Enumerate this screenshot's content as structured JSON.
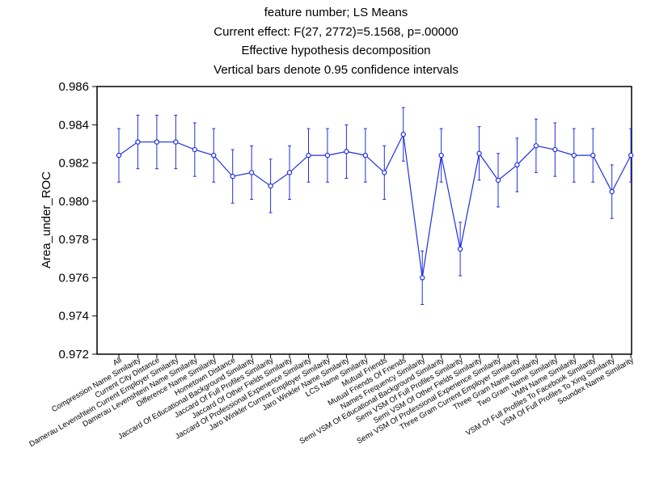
{
  "header": {
    "line1": "feature number; LS Means",
    "line2": "Current effect: F(27, 2772)=5.1568, p=.00000",
    "line3": "Effective hypothesis decomposition",
    "line4": "Vertical bars denote 0.95 confidence intervals"
  },
  "chart_data": {
    "type": "line",
    "title": "feature number; LS Means",
    "subtitle": "Current effect: F(27, 2772)=5.1568, p=.00000",
    "notes": [
      "Effective hypothesis decomposition",
      "Vertical bars denote 0.95 confidence intervals"
    ],
    "xlabel": "",
    "ylabel": "Area_under_ROC",
    "ylim": [
      0.972,
      0.986
    ],
    "yticks": [
      "0.972",
      "0.974",
      "0.976",
      "0.978",
      "0.980",
      "0.982",
      "0.984",
      "0.986"
    ],
    "color": "#1f2fe0",
    "grid": false,
    "categories": [
      "All",
      "Compression Name Similarity",
      "Current City Distance",
      "Damerau Levenshtein Current Employer Similarity",
      "Damerau Levenshtein Name Similarity",
      "Difference Name Similarity",
      "Hometown Distance",
      "Jaccard Of Educational Background Similarity",
      "Jaccard Of Full Profiles Similarity",
      "Jaccard Of Other Fields Similarity",
      "Jaccard Of Professional Experience Similarity",
      "Jaro Winkler Current Employer Similarity",
      "Jaro Winkler Name Similarity",
      "LCS Name Similarity",
      "Mutual Friends",
      "Mutual Friends Of Friends",
      "Names Frequency Similarity",
      "Semi VSM Of Educational Background Similarity",
      "Semi VSM Of Full Profiles Similarity",
      "Semi VSM Of Other Fields Similarity",
      "Semi VSM Of Professional Experience Similarity",
      "Three Gram Current Employer Similarity",
      "Three Gram Name Similarity",
      "Two Gram Name Similarity",
      "VMN Name Similarity",
      "VSM Of Full Profiles To Facebook Similarity",
      "VSM Of Full Profiles To Xing Similarity",
      "Soundex Name Similarity"
    ],
    "series": [
      {
        "values": [
          0.9824,
          0.9831,
          0.9831,
          0.9831,
          0.9827,
          0.9824,
          0.9813,
          0.9815,
          0.9808,
          0.9815,
          0.9824,
          0.9824,
          0.9826,
          0.9824,
          0.9815,
          0.9835,
          0.976,
          0.9824,
          0.9775,
          0.9825,
          0.9811,
          0.9819,
          0.9829,
          0.9827,
          0.9824,
          0.9824,
          0.9805,
          0.9824
        ],
        "ci_lower": [
          0.981,
          0.9817,
          0.9817,
          0.9817,
          0.9813,
          0.981,
          0.9799,
          0.9801,
          0.9794,
          0.9801,
          0.981,
          0.981,
          0.9812,
          0.981,
          0.9801,
          0.9821,
          0.9746,
          0.981,
          0.9761,
          0.9811,
          0.9797,
          0.9805,
          0.9815,
          0.9813,
          0.981,
          0.981,
          0.9791,
          0.981
        ],
        "ci_upper": [
          0.9838,
          0.9845,
          0.9845,
          0.9845,
          0.9841,
          0.9838,
          0.9827,
          0.9829,
          0.9822,
          0.9829,
          0.9838,
          0.9838,
          0.984,
          0.9838,
          0.9829,
          0.9849,
          0.9774,
          0.9838,
          0.9789,
          0.9839,
          0.9825,
          0.9833,
          0.9843,
          0.9841,
          0.9838,
          0.9838,
          0.9819,
          0.9838
        ]
      }
    ]
  }
}
